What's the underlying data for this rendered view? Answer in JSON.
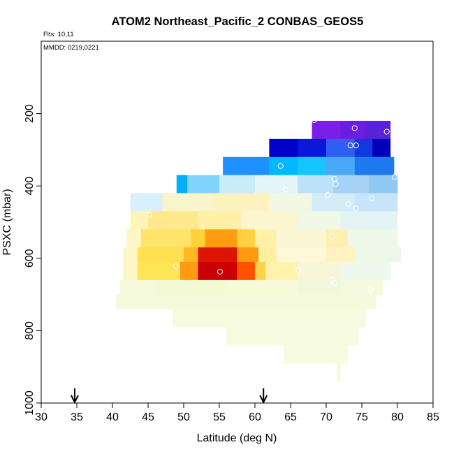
{
  "chart_data": {
    "type": "heatmap",
    "title": "ATOM2 Northeast_Pacific_2 CONBAS_GEOS5",
    "flights_note": "Flts: 10,11",
    "date_note": "MMDD: 0219,0221",
    "xlabel": "Latitude (deg N)",
    "ylabel": "PSXC (mbar)",
    "xlim": [
      30,
      85
    ],
    "ylim": [
      1000,
      0
    ],
    "xticks": [
      30,
      35,
      40,
      45,
      50,
      55,
      60,
      65,
      70,
      75,
      80,
      85
    ],
    "yticks": [
      200,
      400,
      600,
      800,
      1000
    ],
    "grid": false,
    "arrow_latitudes": [
      34.7,
      61.2
    ],
    "colors": {
      "very_low": "#7a1fe6",
      "low": "#0a0ad8",
      "mid_low": "#1e90ff",
      "light": "#c8ecfa",
      "neutral": "#f5fadc",
      "mid_high": "#ffe566",
      "high": "#ff8800",
      "very_high": "#cc0000",
      "marker_stroke": "#ffffff"
    },
    "bands": [
      {
        "p_top": 220,
        "p_bot": 270,
        "lat_min": 68.0,
        "lat_max": 79.0,
        "segments": [
          [
            68.0,
            72.0,
            "#7a1fe6"
          ],
          [
            72.0,
            75.5,
            "#6a1ee0"
          ],
          [
            75.5,
            79.0,
            "#5a22d6"
          ]
        ]
      },
      {
        "p_top": 270,
        "p_bot": 320,
        "lat_min": 62.0,
        "lat_max": 79.0,
        "segments": [
          [
            62.0,
            66.0,
            "#0000c8"
          ],
          [
            66.0,
            70.0,
            "#0a18dc"
          ],
          [
            70.0,
            74.0,
            "#2f5ff0"
          ],
          [
            74.0,
            76.5,
            "#1238e0"
          ],
          [
            76.5,
            79.0,
            "#0000b8"
          ]
        ]
      },
      {
        "p_top": 320,
        "p_bot": 370,
        "lat_min": 55.5,
        "lat_max": 79.5,
        "segments": [
          [
            55.5,
            62.0,
            "#1e90ff"
          ],
          [
            62.0,
            66.0,
            "#00b8ff"
          ],
          [
            66.0,
            70.0,
            "#16c4ff"
          ],
          [
            70.0,
            74.0,
            "#4aa8f8"
          ],
          [
            74.0,
            79.5,
            "#1e78f0"
          ]
        ]
      },
      {
        "p_top": 370,
        "p_bot": 420,
        "lat_min": 49.0,
        "lat_max": 80.0,
        "segments": [
          [
            49.0,
            50.5,
            "#00b0ff"
          ],
          [
            50.5,
            55.0,
            "#80d4ff"
          ],
          [
            55.0,
            60.0,
            "#c8ecfa"
          ],
          [
            60.0,
            66.0,
            "#e4f4f8"
          ],
          [
            66.0,
            71.0,
            "#bce2f8"
          ],
          [
            71.0,
            76.0,
            "#a6d2f6"
          ],
          [
            76.0,
            80.0,
            "#90c8f4"
          ]
        ]
      },
      {
        "p_top": 420,
        "p_bot": 470,
        "lat_min": 42.5,
        "lat_max": 80.0,
        "segments": [
          [
            42.5,
            47.0,
            "#d8f0fa"
          ],
          [
            47.0,
            54.0,
            "#f8f4cc"
          ],
          [
            54.0,
            62.0,
            "#fcf2c0"
          ],
          [
            62.0,
            68.0,
            "#f0f8e4"
          ],
          [
            68.0,
            74.0,
            "#d4ecf8"
          ],
          [
            74.0,
            80.0,
            "#c8e4f8"
          ]
        ]
      },
      {
        "p_top": 470,
        "p_bot": 520,
        "lat_min": 42.5,
        "lat_max": 80.0,
        "segments": [
          [
            42.5,
            45.0,
            "#fff4b8"
          ],
          [
            45.0,
            52.0,
            "#ffe98c"
          ],
          [
            52.0,
            58.0,
            "#fff0a6"
          ],
          [
            58.0,
            66.0,
            "#fbf6d0"
          ],
          [
            66.0,
            72.0,
            "#f0f8e8"
          ],
          [
            72.0,
            80.0,
            "#e4f4f4"
          ]
        ]
      },
      {
        "p_top": 520,
        "p_bot": 570,
        "lat_min": 42.0,
        "lat_max": 80.0,
        "segments": [
          [
            42.0,
            44.0,
            "#fff6c4"
          ],
          [
            44.0,
            51.0,
            "#ffe36a"
          ],
          [
            51.0,
            53.0,
            "#ffd23a"
          ],
          [
            53.0,
            57.5,
            "#ff9c10"
          ],
          [
            57.5,
            60.0,
            "#ffd040"
          ],
          [
            60.0,
            63.0,
            "#fff2a8"
          ],
          [
            63.0,
            70.0,
            "#fbf7d4"
          ],
          [
            70.0,
            73.0,
            "#fff0b0"
          ],
          [
            73.0,
            80.0,
            "#eef8e8"
          ]
        ]
      },
      {
        "p_top": 570,
        "p_bot": 610,
        "lat_min": 41.5,
        "lat_max": 80.5,
        "segments": [
          [
            41.5,
            43.5,
            "#fff6c4"
          ],
          [
            43.5,
            50.0,
            "#ffe050"
          ],
          [
            50.0,
            52.0,
            "#ffb820"
          ],
          [
            52.0,
            57.5,
            "#dd1500"
          ],
          [
            57.5,
            60.5,
            "#ff9a10"
          ],
          [
            60.5,
            63.0,
            "#fff0a0"
          ],
          [
            63.0,
            70.0,
            "#fcf8d8"
          ],
          [
            70.0,
            74.0,
            "#fff4c0"
          ],
          [
            74.0,
            80.5,
            "#eef8e8"
          ]
        ]
      },
      {
        "p_top": 610,
        "p_bot": 660,
        "lat_min": 41.5,
        "lat_max": 79.0,
        "segments": [
          [
            41.5,
            43.5,
            "#fff6c8"
          ],
          [
            43.5,
            49.5,
            "#ffe456"
          ],
          [
            49.5,
            52.0,
            "#ff9a12"
          ],
          [
            52.0,
            57.5,
            "#cc0000"
          ],
          [
            57.5,
            60.0,
            "#ff5200"
          ],
          [
            60.0,
            61.5,
            "#ffd24a"
          ],
          [
            61.5,
            66.0,
            "#fff2aa"
          ],
          [
            66.0,
            72.0,
            "#f8f6d8"
          ],
          [
            72.0,
            79.0,
            "#eef8ec"
          ]
        ]
      },
      {
        "p_top": 660,
        "p_bot": 700,
        "lat_min": 41.0,
        "lat_max": 78.0,
        "segments": [
          [
            41.0,
            46.0,
            "#f6fadc"
          ],
          [
            46.0,
            56.0,
            "#f4fad4"
          ],
          [
            56.0,
            66.0,
            "#f6fad8"
          ],
          [
            66.0,
            72.0,
            "#f2f8dc"
          ],
          [
            72.0,
            78.0,
            "#f4fae0"
          ]
        ]
      },
      {
        "p_top": 700,
        "p_bot": 740,
        "lat_min": 40.5,
        "lat_max": 77.0,
        "segments": [
          [
            40.5,
            77.0,
            "#f5fadc"
          ]
        ]
      },
      {
        "p_top": 740,
        "p_bot": 790,
        "lat_min": 48.5,
        "lat_max": 75.5,
        "segments": [
          [
            48.5,
            75.5,
            "#f6fade"
          ]
        ]
      },
      {
        "p_top": 790,
        "p_bot": 840,
        "lat_min": 56.0,
        "lat_max": 74.5,
        "segments": [
          [
            56.0,
            74.5,
            "#f7fbe0"
          ]
        ]
      },
      {
        "p_top": 840,
        "p_bot": 890,
        "lat_min": 64.0,
        "lat_max": 73.0,
        "segments": [
          [
            64.0,
            73.0,
            "#f7fbe0"
          ]
        ]
      },
      {
        "p_top": 890,
        "p_bot": 940,
        "lat_min": 71.5,
        "lat_max": 72.0,
        "segments": [
          [
            71.5,
            72.0,
            "#f8fbe2"
          ]
        ]
      }
    ],
    "markers": [
      {
        "lat": 68.3,
        "p": 218
      },
      {
        "lat": 74.0,
        "p": 240
      },
      {
        "lat": 78.5,
        "p": 250
      },
      {
        "lat": 73.4,
        "p": 288
      },
      {
        "lat": 74.2,
        "p": 288
      },
      {
        "lat": 63.6,
        "p": 345
      },
      {
        "lat": 79.6,
        "p": 375
      },
      {
        "lat": 71.2,
        "p": 380
      },
      {
        "lat": 71.3,
        "p": 395
      },
      {
        "lat": 64.3,
        "p": 410
      },
      {
        "lat": 70.2,
        "p": 425
      },
      {
        "lat": 76.4,
        "p": 435
      },
      {
        "lat": 73.1,
        "p": 450
      },
      {
        "lat": 74.2,
        "p": 462
      },
      {
        "lat": 45.2,
        "p": 480
      },
      {
        "lat": 70.8,
        "p": 540
      },
      {
        "lat": 48.9,
        "p": 622
      },
      {
        "lat": 55.1,
        "p": 637
      },
      {
        "lat": 66.1,
        "p": 632
      },
      {
        "lat": 70.9,
        "p": 660
      },
      {
        "lat": 71.2,
        "p": 668
      },
      {
        "lat": 76.2,
        "p": 686
      }
    ]
  }
}
